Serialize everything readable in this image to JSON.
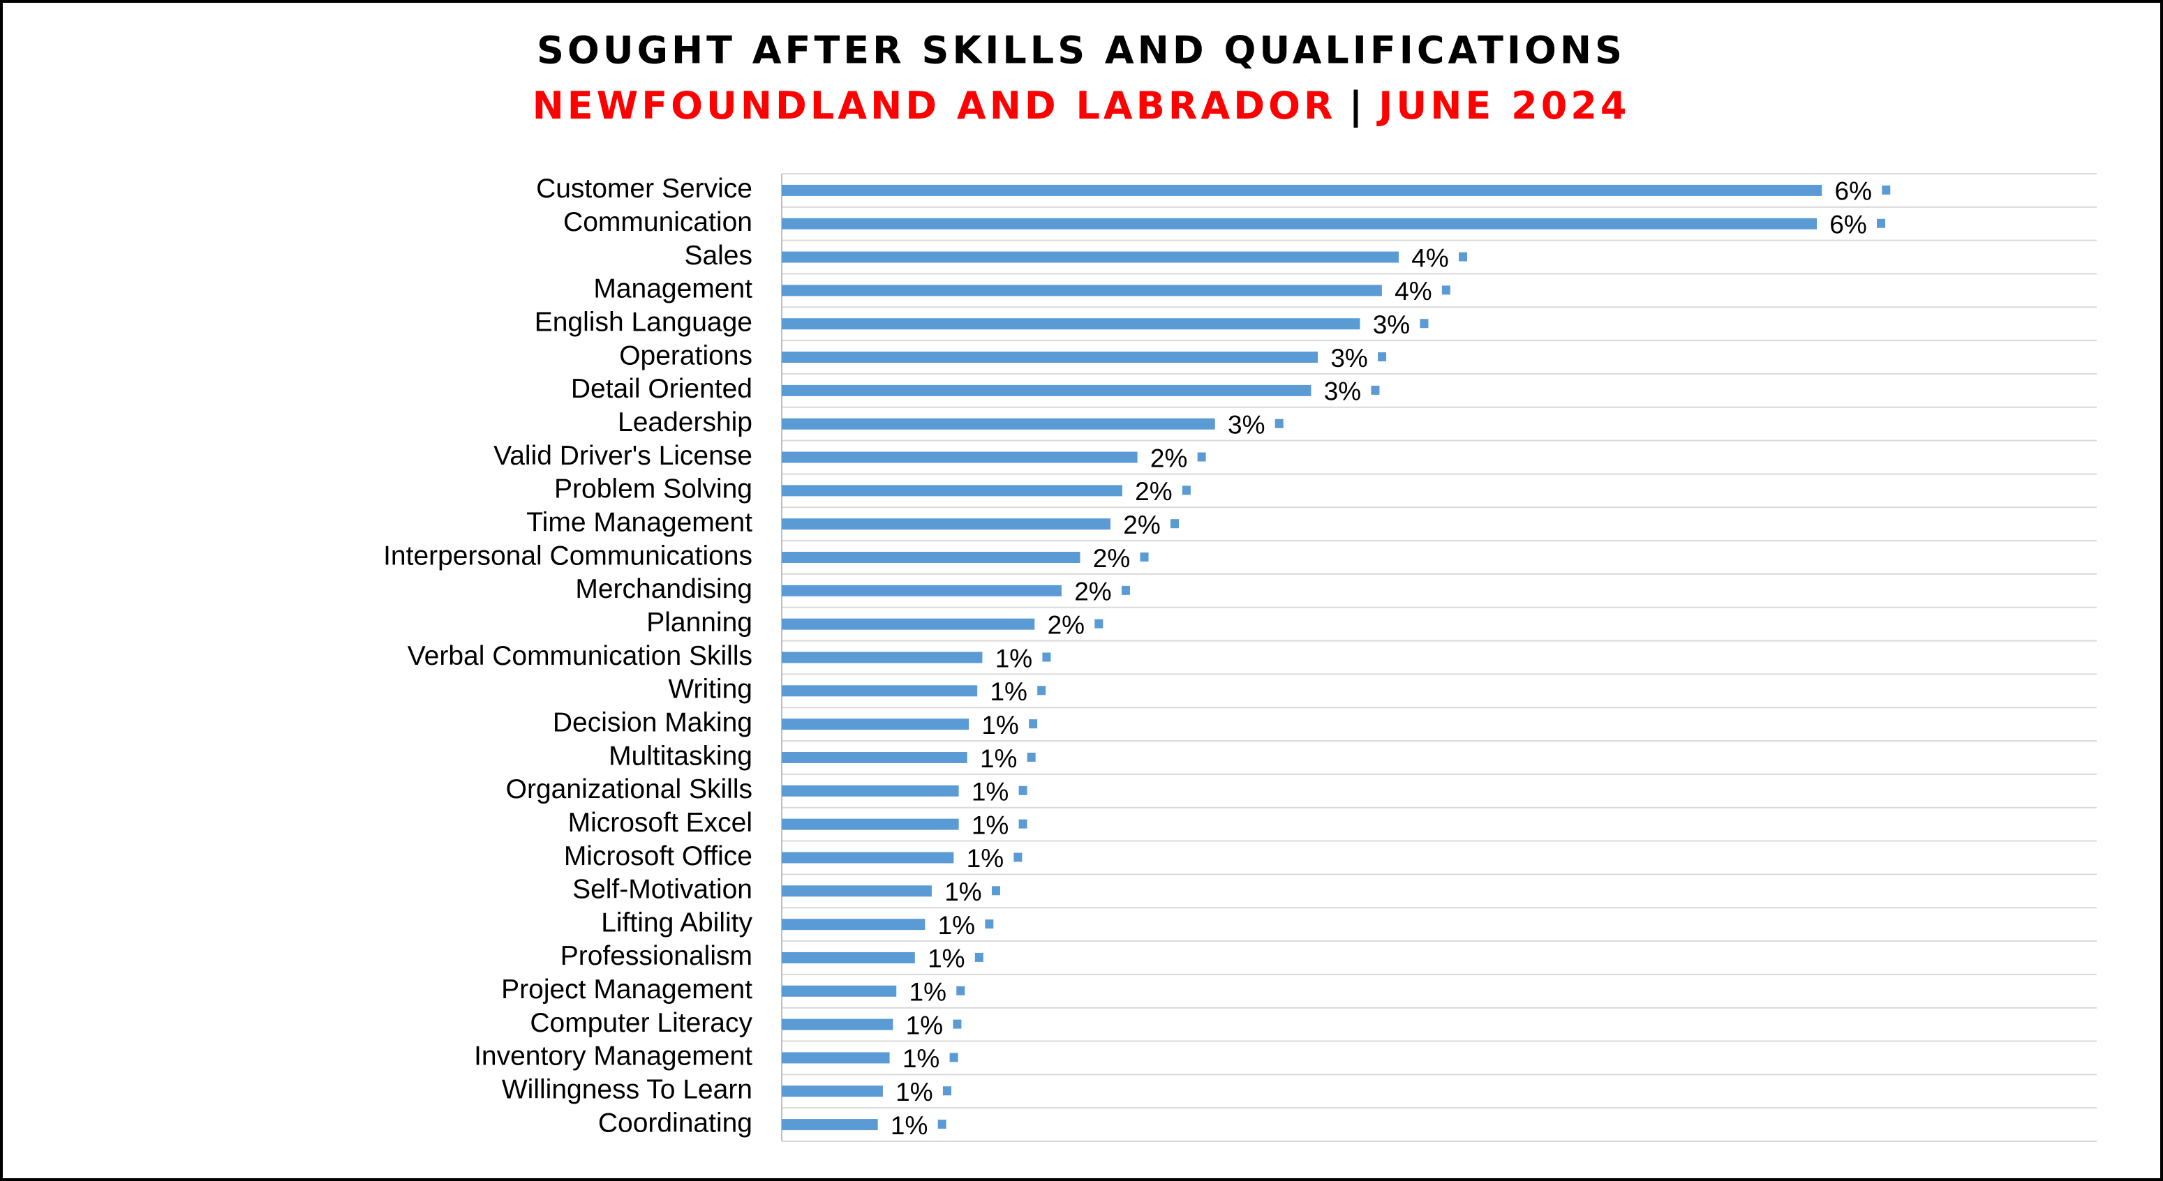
{
  "chart_data": {
    "type": "bar",
    "orientation": "horizontal",
    "title": "SOUGHT AFTER SKILLS AND QUALIFICATIONS",
    "subtitle": {
      "region": "NEWFOUNDLAND AND LABRADOR",
      "separator": "|",
      "date": "JUNE 2024"
    },
    "title_color": "#000000",
    "subtitle_color": "#ff0000",
    "categories": [
      "Customer Service",
      "Communication",
      "Sales",
      "Management",
      "English Language",
      "Operations",
      "Detail Oriented",
      "Leadership",
      "Valid Driver's License",
      "Problem Solving",
      "Time Management",
      "Interpersonal Communications",
      "Merchandising",
      "Planning",
      "Verbal Communication Skills",
      "Writing",
      "Decision Making",
      "Multitasking",
      "Organizational Skills",
      "Microsoft Excel",
      "Microsoft Office",
      "Self-Motivation",
      "Lifting Ability",
      "Professionalism",
      "Project Management",
      "Computer Literacy",
      "Inventory Management",
      "Willingness To Learn",
      "Coordinating"
    ],
    "values": [
      6.17,
      6.14,
      3.66,
      3.56,
      3.43,
      3.18,
      3.14,
      2.57,
      2.11,
      2.02,
      1.95,
      1.77,
      1.66,
      1.5,
      1.19,
      1.16,
      1.11,
      1.1,
      1.05,
      1.05,
      1.02,
      0.89,
      0.85,
      0.79,
      0.68,
      0.66,
      0.64,
      0.6,
      0.57
    ],
    "value_labels": [
      "6%",
      "6%",
      "4%",
      "4%",
      "3%",
      "3%",
      "3%",
      "3%",
      "2%",
      "2%",
      "2%",
      "2%",
      "2%",
      "2%",
      "1%",
      "1%",
      "1%",
      "1%",
      "1%",
      "1%",
      "1%",
      "1%",
      "1%",
      "1%",
      "1%",
      "1%",
      "1%",
      "1%",
      "1%"
    ],
    "color": "#5b9bd5",
    "xlim": [
      0,
      7.8
    ],
    "grid": true
  }
}
